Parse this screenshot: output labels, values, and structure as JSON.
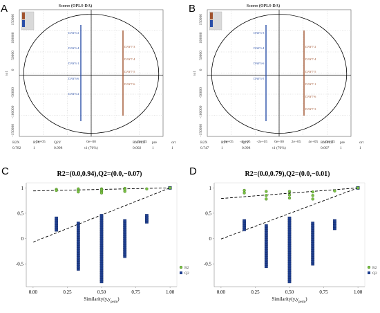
{
  "colors": {
    "score_blue": "#2a4fa8",
    "score_red": "#a0522d",
    "r2_green": "#7ac143",
    "q2_blue": "#1f3f8f",
    "axis": "#555555"
  },
  "chart_data": [
    {
      "panel": "A",
      "type": "scatter",
      "title": "Scores (OPLS-DA)",
      "ylabel": "to1",
      "xlabel": "t1 (76%)",
      "x_ticks": [
        "-5e+05",
        "0e+00",
        "5e+05"
      ],
      "y_ticks": [
        "150000",
        "100000",
        "50000",
        "0",
        "-50000",
        "-100000",
        "-150000"
      ],
      "stats_headers": [
        "R2X",
        "R2Y",
        "Q2Y",
        "RMSEE",
        "pre",
        "ort"
      ],
      "stats_values": [
        "0.782",
        "1",
        "0.998",
        "0.002",
        "1",
        "1"
      ],
      "blue_labels": [
        "DAY3-2",
        "DAY3-4",
        "DAY3-1",
        "DAY3-6",
        "DAY3-2"
      ],
      "red_labels": [
        "DAY7-3",
        "DAY7-4",
        "DAY7-5",
        "DAY7-6"
      ]
    },
    {
      "panel": "B",
      "type": "scatter",
      "title": "Scores (OPLS-DA)",
      "ylabel": "to1",
      "xlabel": "t1 (70%)",
      "x_ticks": [
        "-6e+05",
        "-4e+05",
        "-2e+05",
        "0e+00",
        "2e+05",
        "4e+05",
        "6e+05"
      ],
      "y_ticks": [
        "150000",
        "100000",
        "50000",
        "0",
        "-50000",
        "-100000",
        "-150000"
      ],
      "stats_headers": [
        "R2X",
        "R2Y",
        "Q2Y",
        "RMSEE",
        "pre",
        "ort"
      ],
      "stats_values": [
        "0.747",
        "1",
        "0.998",
        "0.007",
        "1",
        "1"
      ],
      "blue_labels": [
        "DAY3-3",
        "DAY3-4",
        "DAY3-6",
        "DAY3-5"
      ],
      "red_labels": [
        "DAY7-2",
        "DAY7-4",
        "DAY7-5",
        "DAY7-1",
        "DAY7-6",
        "DAY7-3"
      ]
    },
    {
      "panel": "C",
      "type": "scatter",
      "title": "R2=(0.0,0.94),Q2=(0.0,−0.07)",
      "xlabel": "Similarity(y,y_perm)",
      "x_ticks": [
        0.0,
        0.25,
        0.5,
        0.75,
        1.0
      ],
      "y_ticks": [
        1,
        0.5,
        0,
        -0.5
      ],
      "xlim": [
        -0.05,
        1.05
      ],
      "ylim": [
        -0.95,
        1.1
      ],
      "legend": [
        "R2",
        "Q2"
      ],
      "r2_line": [
        [
          0.0,
          0.94
        ],
        [
          1.0,
          1.0
        ]
      ],
      "q2_line": [
        [
          0.0,
          -0.07
        ],
        [
          1.0,
          1.0
        ]
      ],
      "r2_points": [
        [
          0.17,
          0.97
        ],
        [
          0.17,
          0.95
        ],
        [
          0.33,
          0.98
        ],
        [
          0.33,
          0.95
        ],
        [
          0.33,
          0.92
        ],
        [
          0.5,
          0.98
        ],
        [
          0.5,
          0.96
        ],
        [
          0.5,
          0.93
        ],
        [
          0.5,
          0.9
        ],
        [
          0.67,
          0.99
        ],
        [
          0.67,
          0.96
        ],
        [
          0.67,
          0.93
        ],
        [
          0.83,
          0.98
        ],
        [
          1.0,
          1.0
        ]
      ],
      "q2_points": [
        {
          "x": 0.17,
          "ymin": 0.17,
          "ymax": 0.4
        },
        {
          "x": 0.33,
          "ymin": -0.6,
          "ymax": 0.3
        },
        {
          "x": 0.5,
          "ymin": -0.85,
          "ymax": 0.45
        },
        {
          "x": 0.67,
          "ymin": -0.35,
          "ymax": 0.35
        },
        {
          "x": 0.83,
          "ymin": 0.33,
          "ymax": 0.45
        },
        {
          "x": 1.0,
          "ymin": 1.0,
          "ymax": 1.0
        }
      ]
    },
    {
      "panel": "D",
      "type": "scatter",
      "title": "R2=(0.0,0.79),Q2=(0.0,−0.01)",
      "xlabel": "Similarity(y,y_perm)",
      "x_ticks": [
        0.0,
        0.25,
        0.5,
        0.75,
        1.0
      ],
      "y_ticks": [
        1,
        0.5,
        0,
        -0.5
      ],
      "xlim": [
        -0.05,
        1.05
      ],
      "ylim": [
        -0.95,
        1.1
      ],
      "legend": [
        "R2",
        "Q2"
      ],
      "r2_line": [
        [
          0.0,
          0.79
        ],
        [
          1.0,
          1.0
        ]
      ],
      "q2_line": [
        [
          0.0,
          -0.01
        ],
        [
          1.0,
          1.0
        ]
      ],
      "r2_points": [
        [
          0.17,
          0.95
        ],
        [
          0.17,
          0.9
        ],
        [
          0.33,
          0.93
        ],
        [
          0.33,
          0.85
        ],
        [
          0.33,
          0.78
        ],
        [
          0.5,
          0.93
        ],
        [
          0.5,
          0.86
        ],
        [
          0.5,
          0.8
        ],
        [
          0.67,
          0.92
        ],
        [
          0.67,
          0.85
        ],
        [
          0.67,
          0.78
        ],
        [
          0.83,
          0.94
        ],
        [
          1.0,
          1.0
        ]
      ],
      "q2_points": [
        {
          "x": 0.17,
          "ymin": 0.18,
          "ymax": 0.35
        },
        {
          "x": 0.33,
          "ymin": -0.55,
          "ymax": 0.25
        },
        {
          "x": 0.5,
          "ymin": -0.85,
          "ymax": 0.4
        },
        {
          "x": 0.67,
          "ymin": -0.5,
          "ymax": 0.3
        },
        {
          "x": 0.83,
          "ymin": 0.2,
          "ymax": 0.35
        },
        {
          "x": 1.0,
          "ymin": 1.0,
          "ymax": 1.0
        }
      ]
    }
  ]
}
